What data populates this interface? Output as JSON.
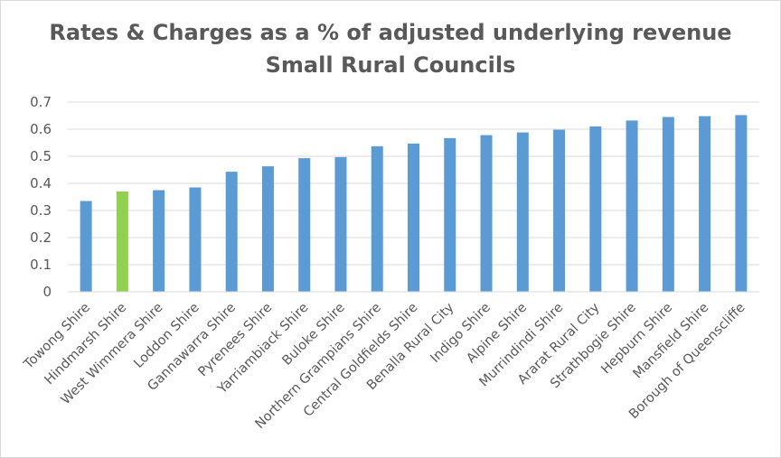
{
  "colors": {
    "bar": "#5b9bd5",
    "highlight": "#92d050",
    "grid": "#d9d9d9",
    "text": "#595959"
  },
  "chart_data": {
    "type": "bar",
    "title": "Rates & Charges as a % of adjusted underlying revenue",
    "subtitle": "Small Rural Councils",
    "xlabel": "",
    "ylabel": "",
    "ylim": [
      0,
      0.7
    ],
    "yticks": [
      "0",
      "0.1",
      "0.2",
      "0.3",
      "0.4",
      "0.5",
      "0.6",
      "0.7"
    ],
    "grid": true,
    "legend": "none",
    "highlighted_category": "Hindmarsh Shire",
    "categories": [
      "Towong Shire",
      "Hindmarsh Shire",
      "West Wimmera Shire",
      "Loddon Shire",
      "Gannawarra Shire",
      "Pyrenees Shire",
      "Yarriambiack Shire",
      "Buloke Shire",
      "Northern Grampians Shire",
      "Central Goldfields Shire",
      "Benalla Rural City",
      "Indigo Shire",
      "Alpine Shire",
      "Murrindindi Shire",
      "Ararat Rural City",
      "Strathbogie Shire",
      "Hepburn Shire",
      "Mansfield Shire",
      "Borough of Queenscliffe"
    ],
    "values": [
      0.335,
      0.37,
      0.375,
      0.385,
      0.443,
      0.463,
      0.493,
      0.497,
      0.537,
      0.547,
      0.567,
      0.578,
      0.588,
      0.598,
      0.61,
      0.632,
      0.645,
      0.648,
      0.652
    ]
  }
}
